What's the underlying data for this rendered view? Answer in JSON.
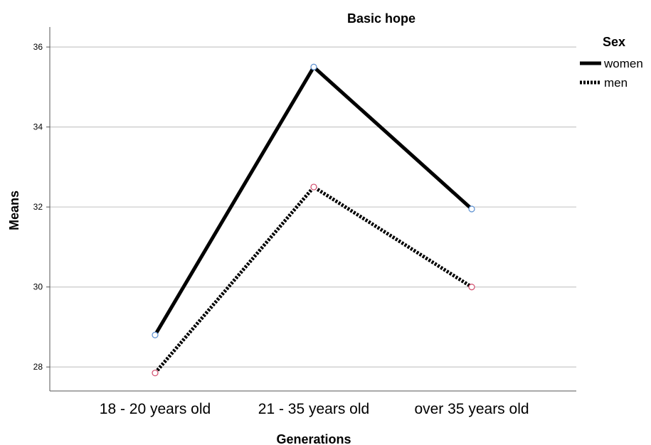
{
  "chart_data": {
    "type": "line",
    "title": "Basic hope",
    "xlabel": "Generations",
    "ylabel": "Means",
    "categories": [
      "18 - 20 years old",
      "21 - 35 years old",
      "over 35 years old"
    ],
    "yticks": [
      28,
      30,
      32,
      34,
      36
    ],
    "ylim": [
      27.4,
      36.5
    ],
    "grid": true,
    "legend": {
      "title": "Sex",
      "placement": "right"
    },
    "series": [
      {
        "name": "women",
        "values": [
          28.8,
          35.5,
          31.95
        ],
        "style": "solid",
        "marker_color": "#5b8fd0"
      },
      {
        "name": "men",
        "values": [
          27.85,
          32.5,
          30.0
        ],
        "style": "dotted",
        "marker_color": "#d04a6a"
      }
    ]
  }
}
